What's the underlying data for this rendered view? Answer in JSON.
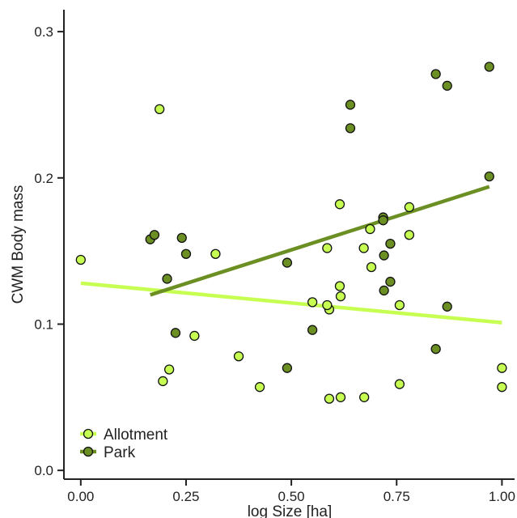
{
  "chart_data": {
    "type": "scatter",
    "xlabel": "log Size [ha]",
    "ylabel": "CWM Body mass",
    "xlim": [
      -0.04,
      1.03
    ],
    "ylim": [
      -0.006,
      0.315
    ],
    "x_ticks": [
      0.0,
      0.25,
      0.5,
      0.75,
      1.0
    ],
    "x_tick_labels": [
      "0.00",
      "0.25",
      "0.50",
      "0.75",
      "1.00"
    ],
    "y_ticks": [
      0.0,
      0.1,
      0.2,
      0.3
    ],
    "y_tick_labels": [
      "0.0",
      "0.1",
      "0.2",
      "0.3"
    ],
    "grid": false,
    "legend_position": "bottom-left",
    "series": [
      {
        "name": "Allotment",
        "color": "#c6ff52",
        "line_color": "#c6ff52",
        "points": [
          [
            0.0,
            0.144
          ],
          [
            0.187,
            0.247
          ],
          [
            0.195,
            0.061
          ],
          [
            0.21,
            0.069
          ],
          [
            0.27,
            0.092
          ],
          [
            0.32,
            0.148
          ],
          [
            0.375,
            0.078
          ],
          [
            0.425,
            0.057
          ],
          [
            0.55,
            0.115
          ],
          [
            0.585,
            0.152
          ],
          [
            0.59,
            0.11
          ],
          [
            0.59,
            0.049
          ],
          [
            0.615,
            0.182
          ],
          [
            0.615,
            0.126
          ],
          [
            0.617,
            0.119
          ],
          [
            0.617,
            0.05
          ],
          [
            0.672,
            0.152
          ],
          [
            0.673,
            0.05
          ],
          [
            0.687,
            0.165
          ],
          [
            0.69,
            0.139
          ],
          [
            0.757,
            0.113
          ],
          [
            0.757,
            0.059
          ],
          [
            0.78,
            0.18
          ],
          [
            0.78,
            0.161
          ],
          [
            0.585,
            0.113
          ],
          [
            1.0,
            0.07
          ],
          [
            1.0,
            0.057
          ]
        ],
        "trend": [
          [
            0.0,
            0.128
          ],
          [
            1.0,
            0.101
          ]
        ]
      },
      {
        "name": "Park",
        "color": "#6b8f22",
        "line_color": "#6b8f22",
        "points": [
          [
            0.165,
            0.158
          ],
          [
            0.175,
            0.161
          ],
          [
            0.205,
            0.131
          ],
          [
            0.225,
            0.094
          ],
          [
            0.24,
            0.159
          ],
          [
            0.25,
            0.148
          ],
          [
            0.49,
            0.142
          ],
          [
            0.49,
            0.07
          ],
          [
            0.55,
            0.096
          ],
          [
            0.64,
            0.25
          ],
          [
            0.64,
            0.234
          ],
          [
            0.718,
            0.173
          ],
          [
            0.718,
            0.171
          ],
          [
            0.72,
            0.147
          ],
          [
            0.72,
            0.123
          ],
          [
            0.735,
            0.155
          ],
          [
            0.735,
            0.129
          ],
          [
            0.843,
            0.271
          ],
          [
            0.843,
            0.083
          ],
          [
            0.87,
            0.263
          ],
          [
            0.87,
            0.112
          ],
          [
            0.97,
            0.276
          ],
          [
            0.97,
            0.201
          ]
        ],
        "trend": [
          [
            0.165,
            0.12
          ],
          [
            0.97,
            0.194
          ]
        ]
      }
    ]
  }
}
